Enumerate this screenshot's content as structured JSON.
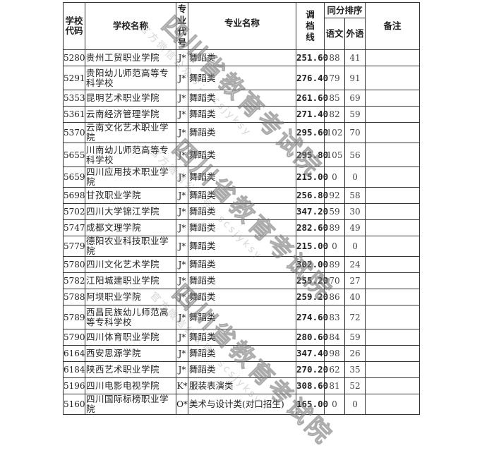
{
  "headers": {
    "school_code": "学校代码",
    "school_name": "学校名称",
    "major_code": "专业代号",
    "major_name": "专业名称",
    "cutoff": "调档线",
    "tie_rank": "同分排序",
    "chinese": "语文",
    "foreign": "外语",
    "remarks": "备注"
  },
  "rows": [
    {
      "code": "5280",
      "name": "贵州工贸职业学院",
      "mcode": "J*",
      "major": "舞蹈类",
      "score": "251.60",
      "cn": "88",
      "fl": "41",
      "remark": ""
    },
    {
      "code": "5291",
      "name": "贵阳幼儿师范高等专科学校",
      "mcode": "J*",
      "major": "舞蹈类",
      "score": "276.40",
      "cn": "79",
      "fl": "91",
      "remark": ""
    },
    {
      "code": "5353",
      "name": "昆明艺术职业学院",
      "mcode": "J*",
      "major": "舞蹈类",
      "score": "261.60",
      "cn": "85",
      "fl": "69",
      "remark": ""
    },
    {
      "code": "5361",
      "name": "云南经济管理学院",
      "mcode": "J*",
      "major": "舞蹈类",
      "score": "271.40",
      "cn": "82",
      "fl": "59",
      "remark": ""
    },
    {
      "code": "5370",
      "name": "云南文化艺术职业学院",
      "mcode": "J*",
      "major": "舞蹈类",
      "score": "295.60",
      "cn": "102",
      "fl": "70",
      "remark": ""
    },
    {
      "code": "5655",
      "name": "川南幼儿师范高等专科学校",
      "mcode": "J*",
      "major": "舞蹈类",
      "score": "295.80",
      "cn": "105",
      "fl": "56",
      "remark": ""
    },
    {
      "code": "5659",
      "name": "四川应用技术职业学院",
      "mcode": "J*",
      "major": "舞蹈类",
      "score": "215.00",
      "cn": "0",
      "fl": "0",
      "remark": ""
    },
    {
      "code": "5698",
      "name": "甘孜职业学院",
      "mcode": "J*",
      "major": "舞蹈类",
      "score": "256.80",
      "cn": "92",
      "fl": "58",
      "remark": ""
    },
    {
      "code": "5702",
      "name": "四川大学锦江学院",
      "mcode": "J*",
      "major": "舞蹈类",
      "score": "347.20",
      "cn": "59",
      "fl": "30",
      "remark": ""
    },
    {
      "code": "5747",
      "name": "成都文理学院",
      "mcode": "J*",
      "major": "舞蹈类",
      "score": "282.60",
      "cn": "89",
      "fl": "49",
      "remark": ""
    },
    {
      "code": "5779",
      "name": "德阳农业科技职业学院",
      "mcode": "J*",
      "major": "舞蹈类",
      "score": "215.00",
      "cn": "0",
      "fl": "0",
      "remark": ""
    },
    {
      "code": "5780",
      "name": "四川文化艺术学院",
      "mcode": "J*",
      "major": "舞蹈类",
      "score": "302.00",
      "cn": "89",
      "fl": "24",
      "remark": ""
    },
    {
      "code": "5782",
      "name": "江阳城建职业学院",
      "mcode": "J*",
      "major": "舞蹈类",
      "score": "255.20",
      "cn": "70",
      "fl": "27",
      "remark": ""
    },
    {
      "code": "5788",
      "name": "阿坝职业学院",
      "mcode": "J*",
      "major": "舞蹈类",
      "score": "259.20",
      "cn": "86",
      "fl": "40",
      "remark": ""
    },
    {
      "code": "5789",
      "name": "西昌民族幼儿师范高等专科学校",
      "mcode": "J*",
      "major": "舞蹈类",
      "score": "274.60",
      "cn": "83",
      "fl": "72",
      "remark": ""
    },
    {
      "code": "5790",
      "name": "四川体育职业学院",
      "mcode": "J*",
      "major": "舞蹈类",
      "score": "280.60",
      "cn": "84",
      "fl": "59",
      "remark": ""
    },
    {
      "code": "6164",
      "name": "西安思源学院",
      "mcode": "J*",
      "major": "舞蹈类",
      "score": "347.40",
      "cn": "98",
      "fl": "26",
      "remark": ""
    },
    {
      "code": "6184",
      "name": "陕西艺术职业学院",
      "mcode": "J*",
      "major": "舞蹈类",
      "score": "270.20",
      "cn": "62",
      "fl": "35",
      "remark": ""
    },
    {
      "code": "5196",
      "name": "四川电影电视学院",
      "mcode": "K*",
      "major": "服装表演类",
      "score": "308.60",
      "cn": "81",
      "fl": "52",
      "remark": ""
    },
    {
      "code": "5160",
      "name": "四川国际标榜职业学院",
      "mcode": "O*",
      "major": "美术与设计类(对口招生)",
      "score": "165.00",
      "cn": "0",
      "fl": "0",
      "remark": ""
    }
  ],
  "watermark": {
    "title": "四川省教育考试院",
    "subtitle": "官方微信公众号：scsjyksy"
  }
}
